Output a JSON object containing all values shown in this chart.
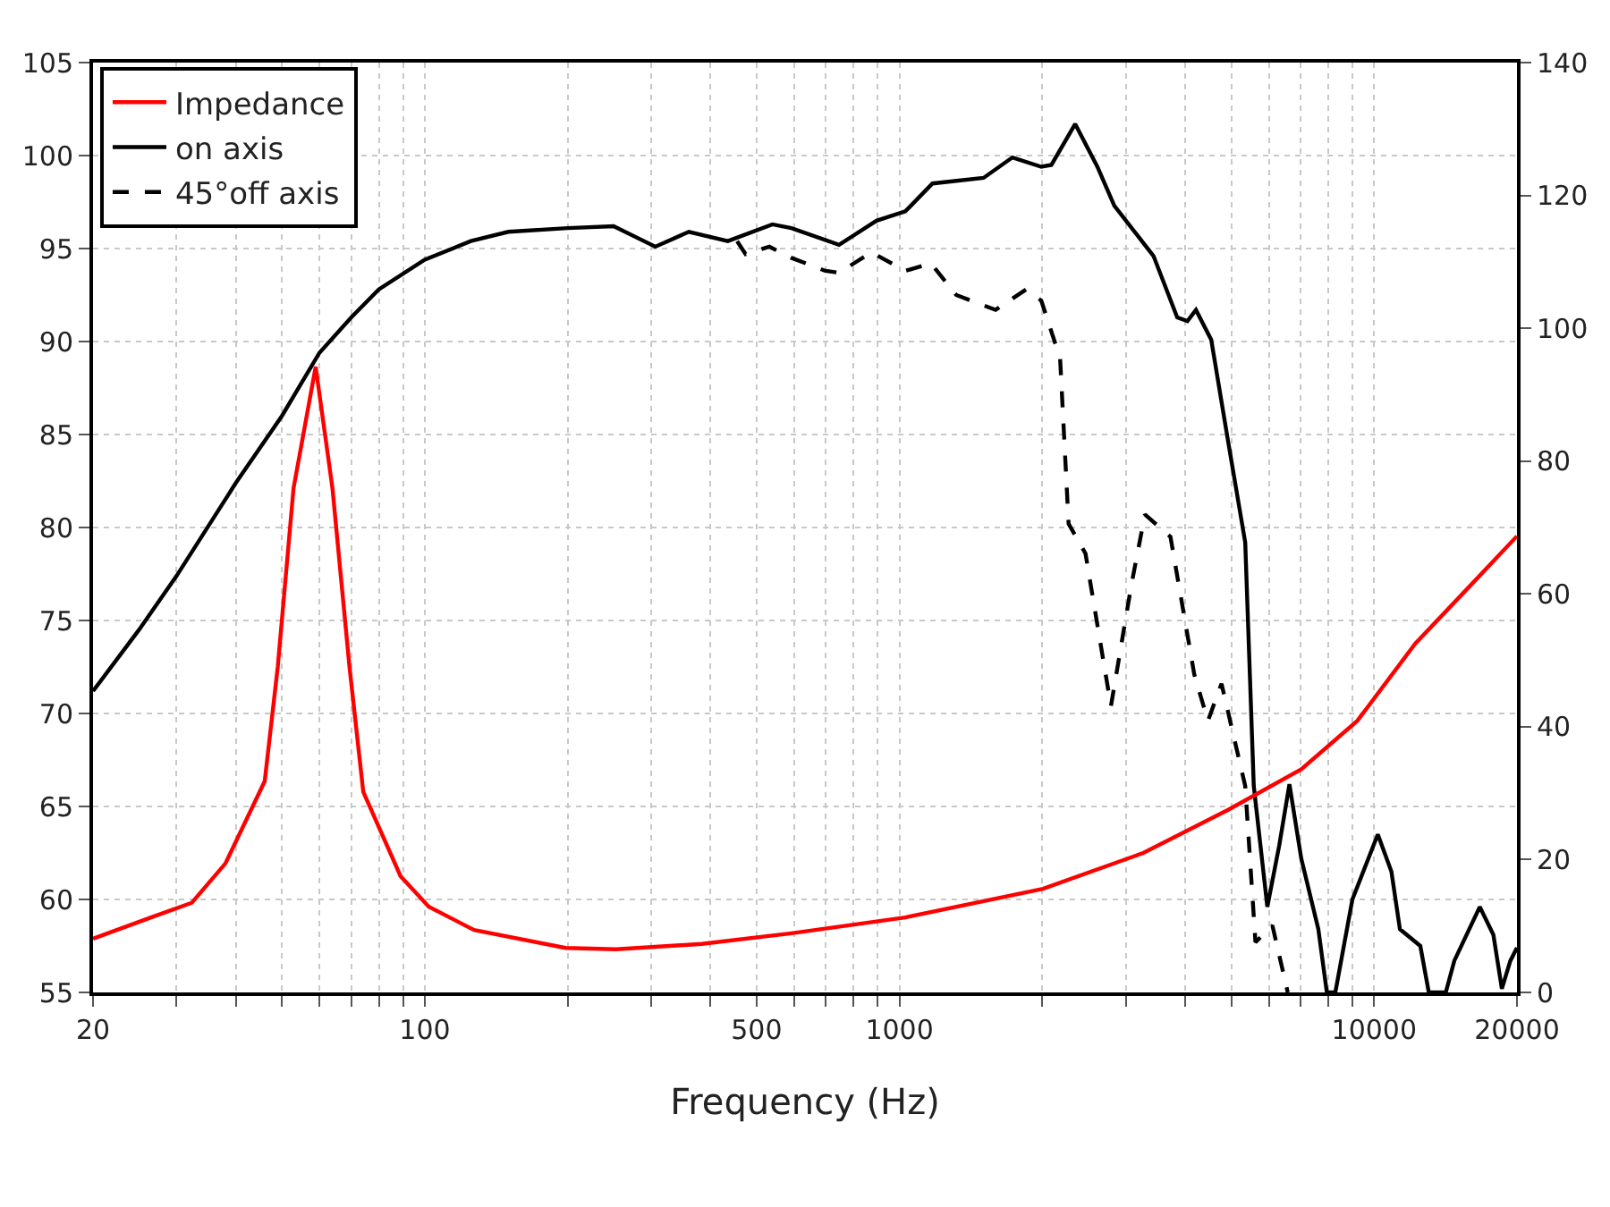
{
  "chart_data": {
    "type": "line",
    "xlabel": "Frequency (Hz)",
    "log": "x",
    "grid": true,
    "legend": "top left",
    "xlim": [
      20,
      20000
    ],
    "xticks": [
      20,
      {
        "value": 30,
        "label": null
      },
      {
        "value": 40,
        "label": null
      },
      {
        "value": 50,
        "label": null
      },
      {
        "value": 60,
        "label": null
      },
      {
        "value": 70,
        "label": null
      },
      {
        "value": 80,
        "label": null
      },
      {
        "value": 90,
        "label": null
      },
      100,
      {
        "value": 200,
        "label": null
      },
      {
        "value": 300,
        "label": null
      },
      {
        "value": 400,
        "label": null
      },
      500,
      {
        "value": 600,
        "label": null
      },
      {
        "value": 700,
        "label": null
      },
      {
        "value": 800,
        "label": null
      },
      {
        "value": 900,
        "label": null
      },
      1000,
      {
        "value": 2000,
        "label": null
      },
      {
        "value": 3000,
        "label": null
      },
      {
        "value": 4000,
        "label": null
      },
      {
        "value": 5000,
        "label": null
      },
      {
        "value": 6000,
        "label": null
      },
      {
        "value": 7000,
        "label": null
      },
      {
        "value": 8000,
        "label": null
      },
      {
        "value": 9000,
        "label": null
      },
      10000,
      20000
    ],
    "ylim": [
      55,
      105
    ],
    "yticks": [
      55,
      60,
      65,
      70,
      75,
      80,
      85,
      90,
      95,
      100,
      105
    ],
    "y2lim": [
      0,
      140
    ],
    "y2ticks": [
      0,
      20,
      40,
      60,
      80,
      100,
      120,
      140
    ],
    "series": [
      {
        "name": "Impedance",
        "color": "#ff0000",
        "axis": "y2",
        "line_style": "solid",
        "x": [
          20,
          26.5,
          32.3,
          38,
          46,
          49,
          52.9,
          58.9,
          63.9,
          69.4,
          74.2,
          88.9,
          102,
          127,
          198,
          253,
          383,
          592,
          1029,
          2006,
          3264,
          4928,
          7024,
          9220,
          12206,
          16020,
          20000
        ],
        "values": [
          8.1,
          11.3,
          13.5,
          19.4,
          31.8,
          49,
          75.9,
          94.2,
          75.9,
          49,
          30.2,
          17.5,
          12.9,
          9.4,
          6.7,
          6.5,
          7.3,
          8.9,
          11.3,
          15.6,
          21,
          27.5,
          33.6,
          40.9,
          52.5,
          61.4,
          68.7
        ]
      },
      {
        "name": "on axis",
        "color": "#000000",
        "line_style": "solid",
        "x": [
          20,
          25,
          30,
          40,
          50,
          60,
          70,
          80,
          100,
          125,
          150,
          200,
          250,
          306,
          360,
          435,
          540,
          592,
          746,
          895,
          1029,
          1174,
          1504,
          1730,
          1990,
          2090,
          2346,
          2612,
          2836,
          3430,
          3848,
          4044,
          4214,
          4538,
          4928,
          5352,
          5578,
          5958,
          6312,
          6632,
          7024,
          7630,
          7952,
          8286,
          9000,
          10182,
          10876,
          11334,
          12514,
          13040,
          14158,
          14756,
          16698,
          17836,
          18586,
          19366,
          20000
        ],
        "values": [
          71.2,
          74.5,
          77.4,
          82.4,
          86,
          89.4,
          91.3,
          92.8,
          94.4,
          95.4,
          95.9,
          96.1,
          96.2,
          95.1,
          95.9,
          95.4,
          96.3,
          96.1,
          95.2,
          96.5,
          97,
          98.5,
          98.8,
          99.9,
          99.4,
          99.5,
          101.7,
          99.4,
          97.3,
          94.6,
          91.3,
          91.1,
          91.7,
          90.1,
          84.6,
          79.2,
          66.1,
          59.6,
          62.9,
          66.2,
          62.2,
          58.4,
          55,
          55,
          60,
          63.5,
          61.5,
          58.4,
          57.5,
          55,
          55,
          56.7,
          59.6,
          58.1,
          55.2,
          56.7,
          57.4
        ]
      },
      {
        "name": "45°off axis",
        "color": "#000000",
        "line_style": "dashed",
        "x": [
          455,
          474,
          532,
          592,
          698,
          746,
          873,
          1029,
          1165,
          1318,
          1594,
          1848,
          1990,
          2180,
          2272,
          2466,
          2790,
          3080,
          3290,
          3724,
          4180,
          4466,
          4770,
          5352,
          5624,
          6106,
          6578
        ],
        "values": [
          95.4,
          94.7,
          95.1,
          94.5,
          93.8,
          93.7,
          94.8,
          93.8,
          94.2,
          92.5,
          91.7,
          92.8,
          92.2,
          89.1,
          80.2,
          78.6,
          70.4,
          76.9,
          80.7,
          79.5,
          72.1,
          69.6,
          71.6,
          66.1,
          57.7,
          58.6,
          55
        ]
      }
    ]
  }
}
